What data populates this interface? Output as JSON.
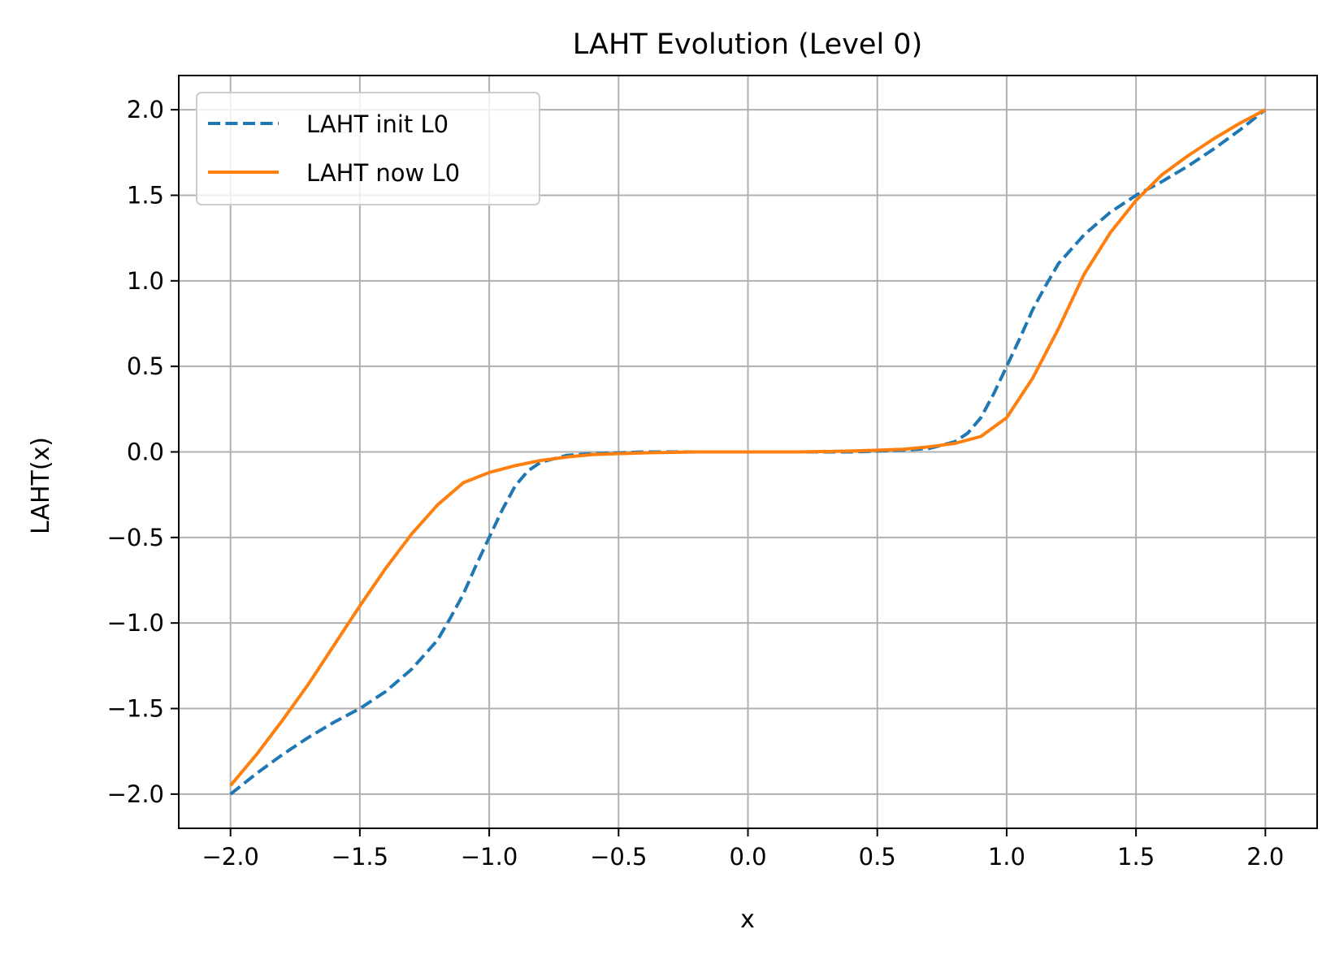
{
  "chart_data": {
    "type": "line",
    "title": "LAHT Evolution (Level 0)",
    "xlabel": "x",
    "ylabel": "LAHT(x)",
    "xlim": [
      -2.2,
      2.2
    ],
    "ylim": [
      -2.2,
      2.2
    ],
    "grid": true,
    "legend_position": "top-left",
    "x_ticks": [
      {
        "value": -2.0,
        "label": "−2.0"
      },
      {
        "value": -1.5,
        "label": "−1.5"
      },
      {
        "value": -1.0,
        "label": "−1.0"
      },
      {
        "value": -0.5,
        "label": "−0.5"
      },
      {
        "value": 0.0,
        "label": "0.0"
      },
      {
        "value": 0.5,
        "label": "0.5"
      },
      {
        "value": 1.0,
        "label": "1.0"
      },
      {
        "value": 1.5,
        "label": "1.5"
      },
      {
        "value": 2.0,
        "label": "2.0"
      }
    ],
    "y_ticks": [
      {
        "value": 2.0,
        "label": "2.0"
      },
      {
        "value": 1.5,
        "label": "1.5"
      },
      {
        "value": 1.0,
        "label": "1.0"
      },
      {
        "value": 0.5,
        "label": "0.5"
      },
      {
        "value": 0.0,
        "label": "0.0"
      },
      {
        "value": -0.5,
        "label": "−0.5"
      },
      {
        "value": -1.0,
        "label": "−1.0"
      },
      {
        "value": -1.5,
        "label": "−1.5"
      },
      {
        "value": -2.0,
        "label": "−2.0"
      }
    ],
    "series": [
      {
        "name": "LAHT init L0",
        "color": "#1f77b4",
        "style": "dashed",
        "x": [
          -2.0,
          -1.9,
          -1.8,
          -1.7,
          -1.6,
          -1.5,
          -1.4,
          -1.3,
          -1.2,
          -1.15,
          -1.1,
          -1.05,
          -1.0,
          -0.95,
          -0.9,
          -0.85,
          -0.8,
          -0.7,
          -0.6,
          -0.5,
          -0.4,
          -0.2,
          0.0,
          0.2,
          0.4,
          0.5,
          0.6,
          0.7,
          0.8,
          0.85,
          0.9,
          0.95,
          1.0,
          1.05,
          1.1,
          1.15,
          1.2,
          1.3,
          1.4,
          1.5,
          1.6,
          1.7,
          1.8,
          1.9,
          2.0
        ],
        "y": [
          -2.0,
          -1.88,
          -1.77,
          -1.67,
          -1.58,
          -1.5,
          -1.4,
          -1.27,
          -1.1,
          -0.97,
          -0.83,
          -0.66,
          -0.5,
          -0.34,
          -0.2,
          -0.11,
          -0.06,
          -0.02,
          -0.01,
          -0.005,
          0.0,
          0.0,
          0.0,
          0.0,
          0.0,
          0.005,
          0.01,
          0.02,
          0.06,
          0.11,
          0.2,
          0.34,
          0.5,
          0.66,
          0.83,
          0.97,
          1.1,
          1.27,
          1.4,
          1.5,
          1.58,
          1.67,
          1.77,
          1.88,
          2.0
        ]
      },
      {
        "name": "LAHT now L0",
        "color": "#ff7f0e",
        "style": "solid",
        "x": [
          -2.0,
          -1.9,
          -1.8,
          -1.7,
          -1.6,
          -1.5,
          -1.4,
          -1.3,
          -1.2,
          -1.1,
          -1.0,
          -0.9,
          -0.8,
          -0.7,
          -0.6,
          -0.5,
          -0.4,
          -0.2,
          0.0,
          0.2,
          0.4,
          0.5,
          0.6,
          0.7,
          0.8,
          0.9,
          1.0,
          1.1,
          1.2,
          1.3,
          1.4,
          1.5,
          1.6,
          1.7,
          1.8,
          1.9,
          2.0
        ],
        "y": [
          -1.95,
          -1.77,
          -1.57,
          -1.36,
          -1.13,
          -0.9,
          -0.68,
          -0.48,
          -0.31,
          -0.18,
          -0.12,
          -0.08,
          -0.05,
          -0.03,
          -0.015,
          -0.01,
          -0.005,
          0.0,
          0.0,
          0.0,
          0.005,
          0.01,
          0.015,
          0.03,
          0.05,
          0.09,
          0.2,
          0.43,
          0.72,
          1.04,
          1.28,
          1.47,
          1.62,
          1.73,
          1.83,
          1.92,
          2.0
        ]
      }
    ]
  }
}
